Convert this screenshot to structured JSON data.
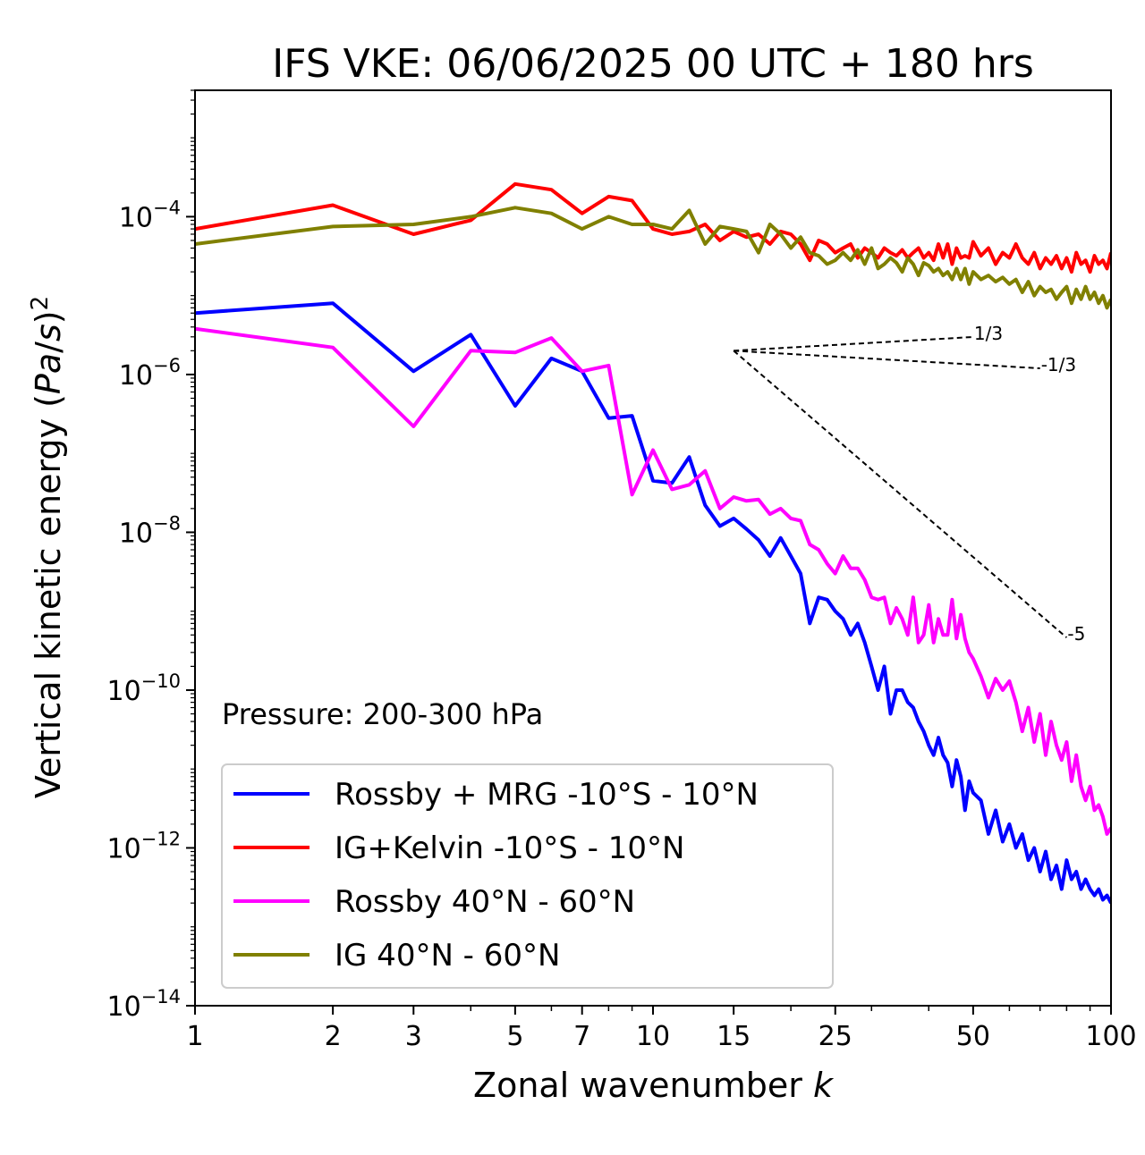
{
  "chart_data": {
    "type": "line",
    "title": "IFS VKE: 06/06/2025 00 UTC + 180 hrs",
    "xlabel": "Zonal wavenumber k",
    "ylabel": "Vertical kinetic energy (Pa/s)²",
    "xscale": "log",
    "yscale": "log",
    "xlim": [
      1,
      100
    ],
    "ylim": [
      1e-14,
      0.004
    ],
    "x_ticks": [
      1,
      2,
      3,
      5,
      7,
      10,
      15,
      25,
      50,
      100
    ],
    "x_tick_labels": [
      "1",
      "2",
      "3",
      "5",
      "7",
      "10",
      "15",
      "25",
      "50",
      "100"
    ],
    "y_ticks": [
      0.0001,
      1e-06,
      1e-08,
      1e-10,
      1e-12,
      1e-14
    ],
    "y_tick_labels": [
      {
        "base": "10",
        "exp": "−4"
      },
      {
        "base": "10",
        "exp": "−6"
      },
      {
        "base": "10",
        "exp": "−8"
      },
      {
        "base": "10",
        "exp": "−10"
      },
      {
        "base": "10",
        "exp": "−12"
      },
      {
        "base": "10",
        "exp": "−14"
      }
    ],
    "annotation": "Pressure: 200-300 hPa",
    "legend_position": "lower-left",
    "series": [
      {
        "name": "Rossby + MRG -10°S - 10°N",
        "color": "#0000ff",
        "x": [
          1,
          2,
          3,
          4,
          5,
          6,
          7,
          8,
          9,
          10,
          11,
          12,
          13,
          14,
          15,
          16,
          17,
          18,
          19,
          20,
          21,
          22,
          23,
          24,
          25,
          26,
          27,
          28,
          29,
          30,
          31,
          32,
          33,
          34,
          35,
          36,
          37,
          38,
          39,
          40,
          41,
          42,
          43,
          44,
          45,
          46,
          47,
          48,
          49,
          50,
          52,
          54,
          56,
          58,
          60,
          62,
          64,
          66,
          68,
          70,
          72,
          74,
          76,
          78,
          80,
          82,
          84,
          86,
          88,
          90,
          92,
          94,
          96,
          98,
          100
        ],
        "y": [
          6e-06,
          8e-06,
          1.1e-06,
          3.2e-06,
          4e-07,
          1.6e-06,
          1.1e-06,
          2.8e-07,
          3e-07,
          4.5e-08,
          4.2e-08,
          9e-08,
          2.2e-08,
          1.2e-08,
          1.5e-08,
          1.1e-08,
          8e-09,
          5e-09,
          8.5e-09,
          5e-09,
          3e-09,
          7e-10,
          1.5e-09,
          1.4e-09,
          1e-09,
          8e-10,
          5e-10,
          7e-10,
          4e-10,
          2e-10,
          1e-10,
          2e-10,
          5e-11,
          1e-10,
          1e-10,
          7e-11,
          6e-11,
          4e-11,
          3e-11,
          2e-11,
          1.5e-11,
          2.5e-11,
          1.5e-11,
          1.2e-11,
          6e-12,
          1.3e-11,
          8e-12,
          3e-12,
          7e-12,
          5e-12,
          4e-12,
          1.5e-12,
          3e-12,
          1.2e-12,
          2e-12,
          1e-12,
          1.5e-12,
          7e-13,
          1e-12,
          5e-13,
          9e-13,
          4e-13,
          6e-13,
          3e-13,
          7e-13,
          4e-13,
          5e-13,
          3e-13,
          4e-13,
          3e-13,
          2.5e-13,
          3e-13,
          2.2e-13,
          2.5e-13,
          2e-13
        ]
      },
      {
        "name": "IG+Kelvin -10°S - 10°N",
        "color": "#ff0000",
        "x": [
          1,
          2,
          3,
          4,
          5,
          6,
          7,
          8,
          9,
          10,
          11,
          12,
          13,
          14,
          15,
          16,
          17,
          18,
          19,
          20,
          21,
          22,
          23,
          24,
          25,
          26,
          27,
          28,
          29,
          30,
          31,
          32,
          33,
          34,
          35,
          36,
          37,
          38,
          39,
          40,
          41,
          42,
          43,
          44,
          45,
          46,
          47,
          48,
          49,
          50,
          52,
          54,
          56,
          58,
          60,
          62,
          64,
          66,
          68,
          70,
          72,
          74,
          76,
          78,
          80,
          82,
          84,
          86,
          88,
          90,
          92,
          94,
          96,
          98,
          100
        ],
        "y": [
          7e-05,
          0.00014,
          6e-05,
          9e-05,
          0.00026,
          0.00022,
          0.00011,
          0.00018,
          0.00016,
          7e-05,
          6e-05,
          6.5e-05,
          8e-05,
          5e-05,
          6.5e-05,
          5.5e-05,
          6e-05,
          4.5e-05,
          6.5e-05,
          6e-05,
          4.5e-05,
          2.8e-05,
          5e-05,
          4.5e-05,
          3.5e-05,
          4e-05,
          4.5e-05,
          3e-05,
          4e-05,
          3.5e-05,
          3e-05,
          4e-05,
          3.5e-05,
          3.2e-05,
          3.8e-05,
          3e-05,
          3.5e-05,
          4e-05,
          3e-05,
          3.5e-05,
          2.8e-05,
          4.5e-05,
          3e-05,
          4.5e-05,
          2.5e-05,
          4e-05,
          3e-05,
          3.2e-05,
          3e-05,
          4.8e-05,
          3.2e-05,
          4e-05,
          2.5e-05,
          3.5e-05,
          3e-05,
          4.5e-05,
          3e-05,
          2.5e-05,
          3.5e-05,
          2.2e-05,
          3e-05,
          2.5e-05,
          3.2e-05,
          2.2e-05,
          3e-05,
          2e-05,
          3.5e-05,
          2.5e-05,
          2.8e-05,
          2e-05,
          3.2e-05,
          2.5e-05,
          2.8e-05,
          2.2e-05,
          3.5e-05
        ]
      },
      {
        "name": "Rossby 40°N - 60°N",
        "color": "#ff00ff",
        "x": [
          1,
          2,
          3,
          4,
          5,
          6,
          7,
          8,
          9,
          10,
          11,
          12,
          13,
          14,
          15,
          16,
          17,
          18,
          19,
          20,
          21,
          22,
          23,
          24,
          25,
          26,
          27,
          28,
          29,
          30,
          31,
          32,
          33,
          34,
          35,
          36,
          37,
          38,
          39,
          40,
          41,
          42,
          43,
          44,
          45,
          46,
          47,
          48,
          49,
          50,
          52,
          54,
          56,
          58,
          60,
          62,
          64,
          66,
          68,
          70,
          72,
          74,
          76,
          78,
          80,
          82,
          84,
          86,
          88,
          90,
          92,
          94,
          96,
          98,
          100
        ],
        "y": [
          3.8e-06,
          2.2e-06,
          2.2e-07,
          2e-06,
          1.9e-06,
          2.9e-06,
          1.1e-06,
          1.3e-06,
          3e-08,
          1.1e-07,
          3.5e-08,
          4e-08,
          6e-08,
          2e-08,
          2.8e-08,
          2.5e-08,
          2.6e-08,
          1.7e-08,
          2e-08,
          1.5e-08,
          1.4e-08,
          7e-09,
          6e-09,
          4e-09,
          3e-09,
          5e-09,
          3.5e-09,
          3.5e-09,
          2.5e-09,
          1.5e-09,
          1.4e-09,
          1.5e-09,
          7e-10,
          1.1e-09,
          8e-10,
          5e-10,
          1.5e-09,
          4e-10,
          5e-10,
          1.2e-09,
          4e-10,
          8e-10,
          5e-10,
          5e-10,
          1.4e-09,
          4.5e-10,
          9e-10,
          4.5e-10,
          3e-10,
          2.5e-10,
          1.5e-10,
          8e-11,
          1.4e-10,
          1e-10,
          1.3e-10,
          7e-11,
          3e-11,
          6e-11,
          2.2e-11,
          5e-11,
          1.5e-11,
          4e-11,
          2e-11,
          1.3e-11,
          2.2e-11,
          7e-12,
          1.5e-11,
          6e-12,
          4e-12,
          6e-12,
          3e-12,
          3.5e-12,
          2.5e-12,
          1.5e-12,
          1.8e-12
        ]
      },
      {
        "name": "IG 40°N - 60°N",
        "color": "#808000",
        "x": [
          1,
          2,
          3,
          4,
          5,
          6,
          7,
          8,
          9,
          10,
          11,
          12,
          13,
          14,
          15,
          16,
          17,
          18,
          19,
          20,
          21,
          22,
          23,
          24,
          25,
          26,
          27,
          28,
          29,
          30,
          31,
          32,
          33,
          34,
          35,
          36,
          37,
          38,
          39,
          40,
          41,
          42,
          43,
          44,
          45,
          46,
          47,
          48,
          49,
          50,
          52,
          54,
          56,
          58,
          60,
          62,
          64,
          66,
          68,
          70,
          72,
          74,
          76,
          78,
          80,
          82,
          84,
          86,
          88,
          90,
          92,
          94,
          96,
          98,
          100
        ],
        "y": [
          4.5e-05,
          7.5e-05,
          8e-05,
          0.0001,
          0.00013,
          0.00011,
          7e-05,
          0.0001,
          8e-05,
          8e-05,
          7e-05,
          0.00012,
          4.5e-05,
          7.5e-05,
          7e-05,
          6.5e-05,
          3.5e-05,
          8e-05,
          6e-05,
          4e-05,
          5.5e-05,
          3.5e-05,
          3.2e-05,
          2.5e-05,
          2.8e-05,
          3.5e-05,
          2.8e-05,
          3.8e-05,
          2.5e-05,
          4e-05,
          2.2e-05,
          2.5e-05,
          3e-05,
          2.6e-05,
          2e-05,
          3e-05,
          2.5e-05,
          1.8e-05,
          2.6e-05,
          2.4e-05,
          2e-05,
          2.2e-05,
          1.8e-05,
          2e-05,
          1.6e-05,
          2.2e-05,
          1.6e-05,
          2.2e-05,
          1.4e-05,
          2e-05,
          1.6e-05,
          1.8e-05,
          1.5e-05,
          1.7e-05,
          1.4e-05,
          1.6e-05,
          1.1e-05,
          1.5e-05,
          1e-05,
          1.3e-05,
          1.1e-05,
          1.2e-05,
          9e-06,
          1.1e-05,
          1.3e-05,
          8e-06,
          1.2e-05,
          9e-06,
          1.3e-05,
          9e-06,
          1.1e-05,
          8e-06,
          1e-05,
          7e-06,
          9e-06
        ]
      }
    ],
    "reference_slopes": [
      {
        "label": "1/3",
        "origin": [
          15,
          2e-06
        ],
        "end_k": 50
      },
      {
        "label": "-1/3",
        "origin": [
          15,
          2e-06
        ],
        "end_k": 70
      },
      {
        "label": "-5",
        "origin": [
          15,
          2e-06
        ],
        "end_k": 80
      }
    ]
  }
}
